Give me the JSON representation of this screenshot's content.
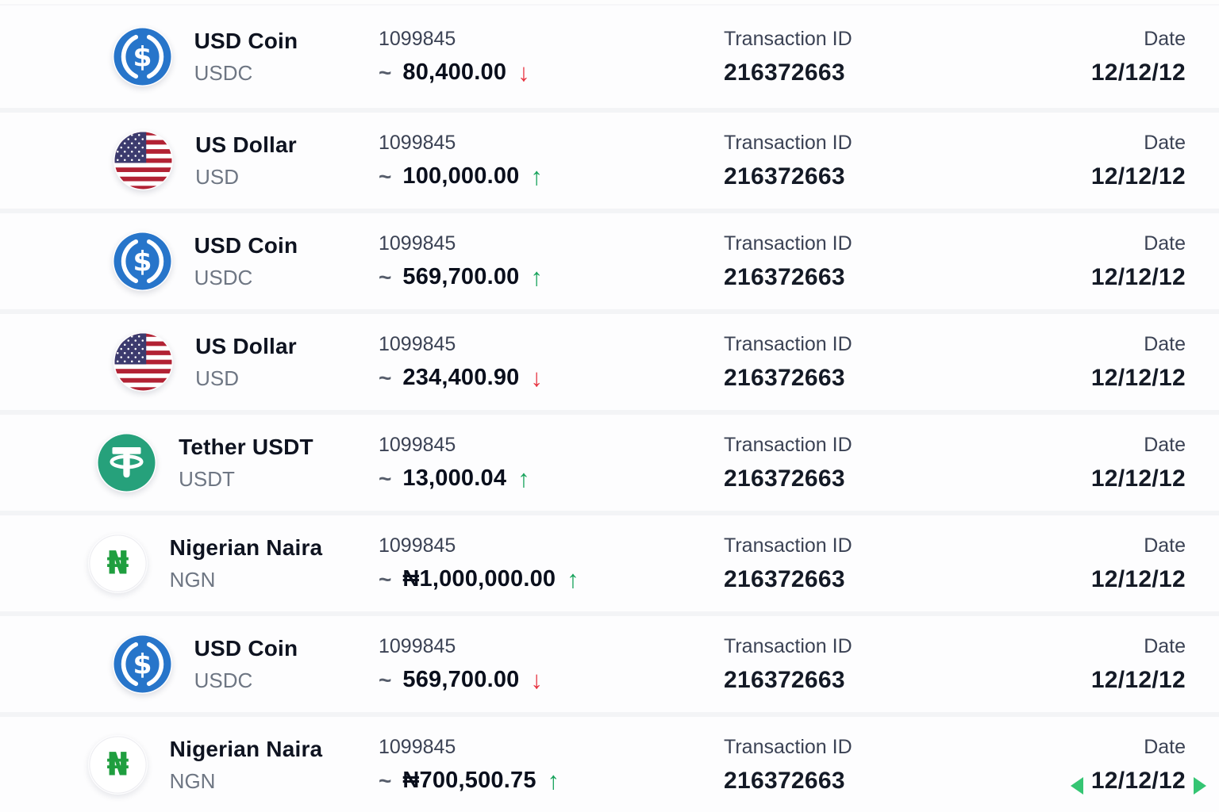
{
  "labels": {
    "transaction_id": "Transaction ID",
    "date": "Date"
  },
  "arrows": {
    "up": "↑",
    "down": "↓"
  },
  "colors": {
    "up_green": "#18a35c",
    "down_red": "#e73340",
    "usdc_blue": "#2775CA",
    "tether_green": "#26A17B",
    "naira_green": "#1f9e3f",
    "flag_blue": "#3C3B6E",
    "flag_red": "#B22234"
  },
  "rows": [
    {
      "currency": "USD Coin",
      "code": "USDC",
      "icon": "usdc",
      "reference": "1099845",
      "approx": "~",
      "amount": "80,400.00",
      "direction": "down",
      "transaction_id": "216372663",
      "date": "12/12/12",
      "date_selected": false
    },
    {
      "currency": "US Dollar",
      "code": "USD",
      "icon": "usd-flag",
      "reference": "1099845",
      "approx": "~",
      "amount": "100,000.00",
      "direction": "up",
      "transaction_id": "216372663",
      "date": "12/12/12",
      "date_selected": false
    },
    {
      "currency": "USD Coin",
      "code": "USDC",
      "icon": "usdc",
      "reference": "1099845",
      "approx": "~",
      "amount": "569,700.00",
      "direction": "up",
      "transaction_id": "216372663",
      "date": "12/12/12",
      "date_selected": false
    },
    {
      "currency": "US Dollar",
      "code": "USD",
      "icon": "usd-flag",
      "reference": "1099845",
      "approx": "~",
      "amount": "234,400.90",
      "direction": "down",
      "transaction_id": "216372663",
      "date": "12/12/12",
      "date_selected": false
    },
    {
      "currency": "Tether USDT",
      "code": "USDT",
      "icon": "tether",
      "reference": "1099845",
      "approx": "~",
      "amount": "13,000.04",
      "direction": "up",
      "transaction_id": "216372663",
      "date": "12/12/12",
      "date_selected": false
    },
    {
      "currency": "Nigerian Naira",
      "code": "NGN",
      "icon": "naira",
      "reference": "1099845",
      "approx": "~",
      "amount": "₦1,000,000.00",
      "direction": "up",
      "transaction_id": "216372663",
      "date": "12/12/12",
      "date_selected": false
    },
    {
      "currency": "USD Coin",
      "code": "USDC",
      "icon": "usdc",
      "reference": "1099845",
      "approx": "~",
      "amount": "569,700.00",
      "direction": "down",
      "transaction_id": "216372663",
      "date": "12/12/12",
      "date_selected": false
    },
    {
      "currency": "Nigerian Naira",
      "code": "NGN",
      "icon": "naira",
      "reference": "1099845",
      "approx": "~",
      "amount": "₦700,500.75",
      "direction": "up",
      "transaction_id": "216372663",
      "date": "12/12/12",
      "date_selected": true
    }
  ]
}
